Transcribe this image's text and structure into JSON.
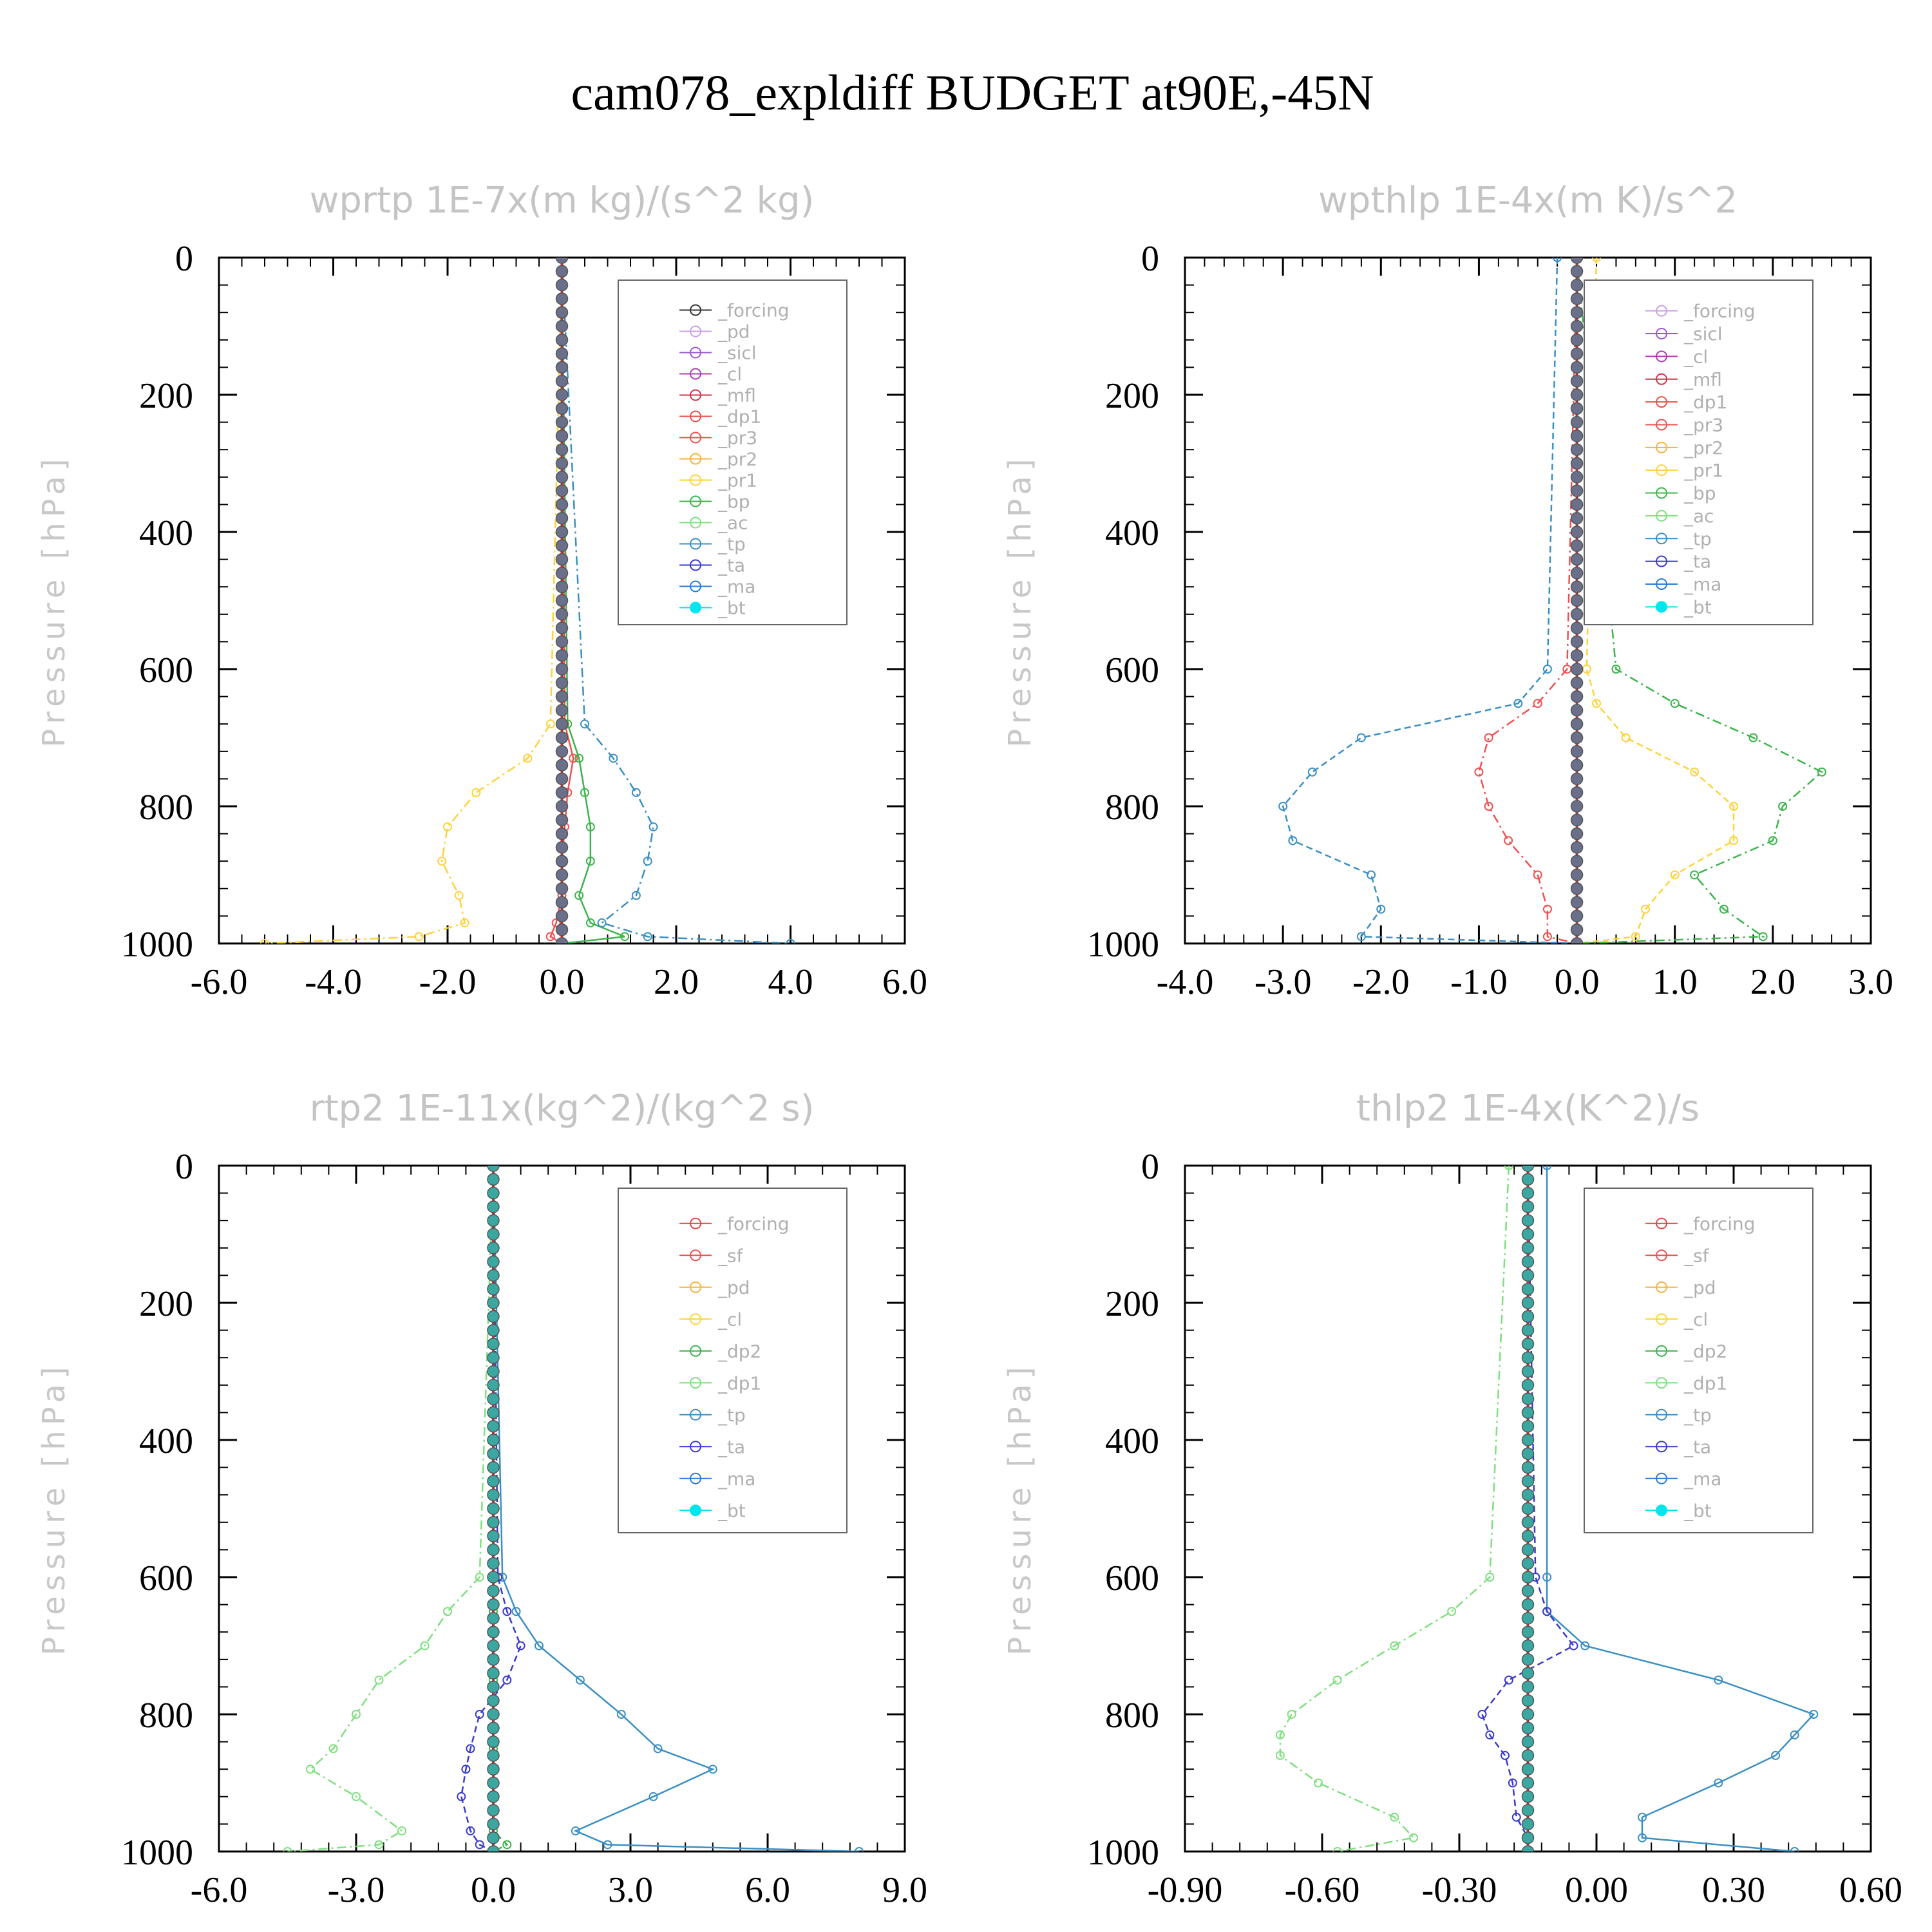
{
  "title": "cam078_expldiff  BUDGET at90E,-45N",
  "chart_data": [
    {
      "type": "line",
      "title": "wprtp  1E-7x(m kg)/(s^2 kg)",
      "ylabel": "Pressure [hPa]",
      "xlim": [
        -6.0,
        6.0
      ],
      "ylim": [
        1000,
        0
      ],
      "xticks": [
        "-6.0",
        "-4.0",
        "-2.0",
        "0.0",
        "2.0",
        "4.0",
        "6.0"
      ],
      "yticks": [
        "0",
        "200",
        "400",
        "600",
        "800",
        "1000"
      ],
      "legend_position": "top-right",
      "levels": [
        0,
        680,
        730,
        780,
        830,
        880,
        930,
        970,
        990,
        1000
      ],
      "series": [
        {
          "name": "_forcing",
          "color": "#333333",
          "values": [
            0,
            0,
            0,
            0,
            0,
            0,
            0,
            0,
            0,
            0
          ]
        },
        {
          "name": "_pd",
          "color": "#c9a0e8",
          "values": [
            0,
            0,
            0,
            0,
            0,
            0,
            0,
            0,
            0,
            0
          ]
        },
        {
          "name": "_sicl",
          "color": "#9b59d0",
          "values": [
            0,
            0,
            0,
            0,
            0,
            0,
            0,
            0,
            0,
            0
          ]
        },
        {
          "name": "_cl",
          "color": "#b03cb0",
          "values": [
            0,
            0,
            0,
            0,
            0,
            0,
            0,
            0,
            0,
            0
          ]
        },
        {
          "name": "_mfl",
          "color": "#d6304a",
          "values": [
            0,
            0,
            0,
            0,
            0,
            0,
            0,
            0,
            0,
            0
          ]
        },
        {
          "name": "_dp1",
          "color": "#e8504a",
          "values": [
            0,
            0,
            0,
            0,
            0,
            0,
            0,
            0,
            0,
            0
          ]
        },
        {
          "name": "_pr3",
          "color": "#f05050",
          "values": [
            0,
            0.05,
            0.2,
            0.1,
            0.05,
            0,
            0,
            -0.1,
            -0.2,
            0
          ]
        },
        {
          "name": "_pr2",
          "color": "#f7b23a",
          "values": [
            0,
            0,
            0,
            0,
            0,
            0,
            0,
            0,
            0,
            0
          ]
        },
        {
          "name": "_pr1",
          "color": "#ffd23a",
          "values": [
            0,
            -0.2,
            -0.6,
            -1.5,
            -2.0,
            -2.1,
            -1.8,
            -1.7,
            -2.5,
            -5.2
          ]
        },
        {
          "name": "_bp",
          "color": "#3cb44b",
          "values": [
            0,
            0.1,
            0.3,
            0.4,
            0.5,
            0.5,
            0.3,
            0.5,
            1.1,
            0
          ]
        },
        {
          "name": "_ac",
          "color": "#7ee07e",
          "values": [
            0,
            0,
            0,
            0,
            0,
            0,
            0,
            0,
            0,
            0
          ]
        },
        {
          "name": "_tp",
          "color": "#3a8fc4",
          "values": [
            0,
            0.4,
            0.9,
            1.3,
            1.6,
            1.5,
            1.3,
            0.7,
            1.5,
            4.0
          ]
        },
        {
          "name": "_ta",
          "color": "#3a3ad0",
          "values": [
            0,
            0,
            0,
            0,
            0,
            0,
            0,
            0,
            0,
            0
          ]
        },
        {
          "name": "_ma",
          "color": "#2a7ad8",
          "values": [
            0,
            0,
            0,
            0,
            0,
            0,
            0,
            0,
            0,
            0
          ]
        },
        {
          "name": "_bt",
          "color": "#00e5ee",
          "values": [
            0,
            0,
            0,
            0,
            0,
            0,
            0,
            0,
            0,
            0
          ]
        }
      ]
    },
    {
      "type": "line",
      "title": "wpthlp  1E-4x(m K)/s^2",
      "ylabel": "Pressure [hPa]",
      "xlim": [
        -4.0,
        3.0
      ],
      "ylim": [
        1000,
        0
      ],
      "xticks": [
        "-4.0",
        "-3.0",
        "-2.0",
        "-1.0",
        "0.0",
        "1.0",
        "2.0",
        "3.0"
      ],
      "yticks": [
        "0",
        "200",
        "400",
        "600",
        "800",
        "1000"
      ],
      "legend_position": "top-right",
      "levels": [
        0,
        600,
        650,
        700,
        750,
        800,
        850,
        900,
        950,
        990,
        1000
      ],
      "series": [
        {
          "name": "_forcing",
          "color": "#c9a0e8",
          "values": [
            0,
            0,
            0,
            0,
            0,
            0,
            0,
            0,
            0,
            0,
            0
          ]
        },
        {
          "name": "_sicl",
          "color": "#9b59d0",
          "values": [
            0,
            0,
            0,
            0,
            0,
            0,
            0,
            0,
            0,
            0,
            0
          ]
        },
        {
          "name": "_cl",
          "color": "#b03cb0",
          "values": [
            0,
            0,
            0,
            0,
            0,
            0,
            0,
            0,
            0,
            0,
            0
          ]
        },
        {
          "name": "_mfl",
          "color": "#d6304a",
          "values": [
            0,
            0,
            0,
            0,
            0,
            0,
            0,
            0,
            0,
            0,
            0
          ]
        },
        {
          "name": "_dp1",
          "color": "#e8504a",
          "values": [
            0,
            0,
            0,
            0,
            0,
            0,
            0,
            0,
            0,
            0,
            0
          ]
        },
        {
          "name": "_pr3",
          "color": "#f05050",
          "values": [
            0,
            -0.1,
            -0.4,
            -0.9,
            -1.0,
            -0.9,
            -0.7,
            -0.4,
            -0.3,
            -0.3,
            0
          ]
        },
        {
          "name": "_pr2",
          "color": "#f7b23a",
          "values": [
            0,
            0,
            0,
            0,
            0,
            0,
            0,
            0,
            0,
            0,
            0
          ]
        },
        {
          "name": "_pr1",
          "color": "#ffd23a",
          "values": [
            0.2,
            0.1,
            0.2,
            0.5,
            1.2,
            1.6,
            1.6,
            1.0,
            0.7,
            0.6,
            0
          ]
        },
        {
          "name": "_bp",
          "color": "#3cb44b",
          "values": [
            0,
            0.4,
            1.0,
            1.8,
            2.5,
            2.1,
            2.0,
            1.2,
            1.5,
            1.9,
            0
          ]
        },
        {
          "name": "_ac",
          "color": "#7ee07e",
          "values": [
            0,
            0,
            0,
            0,
            0,
            0,
            0,
            0,
            0,
            0,
            0
          ]
        },
        {
          "name": "_tp",
          "color": "#3a8fc4",
          "values": [
            -0.2,
            -0.3,
            -0.6,
            -2.2,
            -2.7,
            -3.0,
            -2.9,
            -2.1,
            -2.0,
            -2.2,
            0
          ]
        },
        {
          "name": "_ta",
          "color": "#3a3ad0",
          "values": [
            0,
            0,
            0,
            0,
            0,
            0,
            0,
            0,
            0,
            0,
            0
          ]
        },
        {
          "name": "_ma",
          "color": "#2a7ad8",
          "values": [
            0,
            0,
            0,
            0,
            0,
            0,
            0,
            0,
            0,
            0,
            0
          ]
        },
        {
          "name": "_bt",
          "color": "#00e5ee",
          "values": [
            0,
            0,
            0,
            0,
            0,
            0,
            0,
            0,
            0,
            0,
            0
          ]
        }
      ]
    },
    {
      "type": "line",
      "title": "rtp2  1E-11x(kg^2)/(kg^2 s)",
      "ylabel": "Pressure [hPa]",
      "xlim": [
        -6.0,
        9.0
      ],
      "ylim": [
        1000,
        0
      ],
      "xticks": [
        "-6.0",
        "-3.0",
        "0.0",
        "3.0",
        "6.0",
        "9.0"
      ],
      "yticks": [
        "0",
        "200",
        "400",
        "600",
        "800",
        "1000"
      ],
      "legend_position": "top-right",
      "levels": [
        0,
        600,
        650,
        700,
        750,
        800,
        850,
        880,
        920,
        970,
        990,
        1000
      ],
      "series": [
        {
          "name": "_forcing",
          "color": "#e04848",
          "values": [
            0,
            0,
            0,
            0,
            0,
            0,
            0,
            0,
            0,
            0,
            0,
            0
          ]
        },
        {
          "name": "_sf",
          "color": "#f05050",
          "values": [
            0,
            0,
            0,
            0,
            0,
            0,
            0,
            0,
            0,
            0,
            0,
            0
          ]
        },
        {
          "name": "_pd",
          "color": "#f7b23a",
          "values": [
            0,
            0,
            0,
            0,
            0,
            0,
            0,
            0,
            0,
            0,
            0,
            0
          ]
        },
        {
          "name": "_cl",
          "color": "#ffd23a",
          "values": [
            0,
            0,
            0,
            0,
            0,
            0,
            0,
            0,
            0,
            0,
            0,
            0
          ]
        },
        {
          "name": "_dp2",
          "color": "#3cb44b",
          "values": [
            0,
            0,
            0,
            0,
            0,
            0,
            0,
            0,
            0,
            0,
            0.3,
            0
          ]
        },
        {
          "name": "_dp1",
          "color": "#7ee07e",
          "values": [
            0,
            -0.3,
            -1.0,
            -1.5,
            -2.5,
            -3.0,
            -3.5,
            -4.0,
            -3.0,
            -2.0,
            -2.5,
            -4.5
          ]
        },
        {
          "name": "_tp",
          "color": "#3a8fc4",
          "values": [
            0,
            0.2,
            0.5,
            1.0,
            1.9,
            2.8,
            3.6,
            4.8,
            3.5,
            1.8,
            2.5,
            8.0
          ]
        },
        {
          "name": "_ta",
          "color": "#3a3ad0",
          "values": [
            0,
            0.1,
            0.3,
            0.6,
            0.3,
            -0.3,
            -0.5,
            -0.6,
            -0.7,
            -0.5,
            -0.3,
            0
          ]
        },
        {
          "name": "_ma",
          "color": "#2a7ad8",
          "values": [
            0,
            0,
            0,
            0,
            0,
            0,
            0,
            0,
            0,
            0,
            0,
            0
          ]
        },
        {
          "name": "_bt",
          "color": "#00e5ee",
          "values": [
            0,
            0,
            0,
            0,
            0,
            0,
            0,
            0,
            0,
            0,
            0,
            0
          ]
        }
      ]
    },
    {
      "type": "line",
      "title": "thlp2  1E-4x(K^2)/s",
      "ylabel": "Pressure [hPa]",
      "xlim": [
        -0.9,
        0.9
      ],
      "ylim": [
        1000,
        0
      ],
      "xticks": [
        "-0.90",
        "-0.60",
        "-0.30",
        "0.00",
        "0.30",
        "0.60"
      ],
      "yticks": [
        "0",
        "200",
        "400",
        "600",
        "800",
        "1000"
      ],
      "legend_position": "top-right",
      "levels": [
        0,
        600,
        650,
        700,
        750,
        800,
        830,
        860,
        900,
        950,
        980,
        1000
      ],
      "series": [
        {
          "name": "_forcing",
          "color": "#e04848",
          "values": [
            0,
            0,
            0,
            0,
            0,
            0,
            0,
            0,
            0,
            0,
            0,
            0
          ]
        },
        {
          "name": "_sf",
          "color": "#f05050",
          "values": [
            0,
            0,
            0,
            0,
            0,
            0,
            0,
            0,
            0,
            0,
            0,
            0
          ]
        },
        {
          "name": "_pd",
          "color": "#f7b23a",
          "values": [
            0,
            0,
            0,
            0,
            0,
            0,
            0,
            0,
            0,
            0,
            0,
            0
          ]
        },
        {
          "name": "_cl",
          "color": "#ffd23a",
          "values": [
            0,
            0,
            0,
            0,
            0,
            0,
            0,
            0,
            0,
            0,
            0,
            0
          ]
        },
        {
          "name": "_dp2",
          "color": "#3cb44b",
          "values": [
            0,
            0,
            0,
            0,
            0,
            0,
            0,
            0,
            0,
            0,
            0,
            0
          ]
        },
        {
          "name": "_dp1",
          "color": "#7ee07e",
          "values": [
            -0.05,
            -0.1,
            -0.2,
            -0.35,
            -0.5,
            -0.62,
            -0.65,
            -0.65,
            -0.55,
            -0.35,
            -0.3,
            -0.5
          ]
        },
        {
          "name": "_tp",
          "color": "#3a8fc4",
          "values": [
            0.05,
            0.05,
            0.05,
            0.15,
            0.5,
            0.75,
            0.7,
            0.65,
            0.5,
            0.3,
            0.3,
            0.7
          ]
        },
        {
          "name": "_ta",
          "color": "#3a3ad0",
          "values": [
            0,
            0.02,
            0.05,
            0.12,
            -0.05,
            -0.12,
            -0.1,
            -0.06,
            -0.04,
            -0.03,
            0,
            0
          ]
        },
        {
          "name": "_ma",
          "color": "#2a7ad8",
          "values": [
            0,
            0,
            0,
            0,
            0,
            0,
            0,
            0,
            0,
            0,
            0,
            0
          ]
        },
        {
          "name": "_bt",
          "color": "#00e5ee",
          "values": [
            0,
            0,
            0,
            0,
            0,
            0,
            0,
            0,
            0,
            0,
            0,
            0
          ]
        }
      ]
    }
  ]
}
